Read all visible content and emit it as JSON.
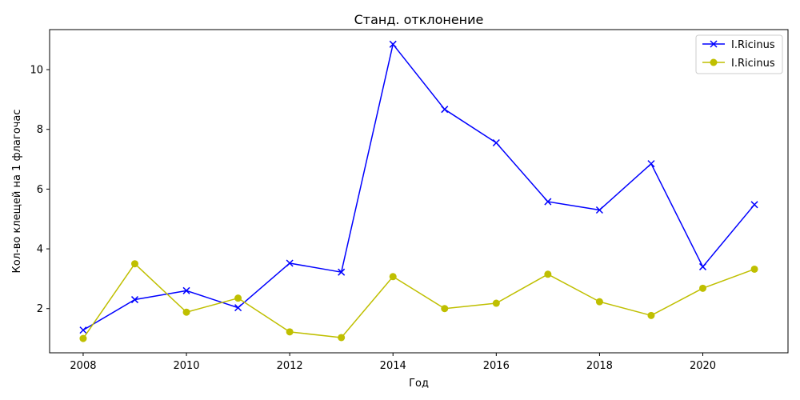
{
  "chart_data": {
    "type": "line",
    "title": "Станд. отклонение",
    "xlabel": "Год",
    "ylabel": "Кол-во клещей на 1 флагочас",
    "xlim": [
      2007.35,
      2021.65
    ],
    "ylim": [
      0.52,
      11.34
    ],
    "xticks": [
      2008,
      2010,
      2012,
      2014,
      2016,
      2018,
      2020
    ],
    "yticks": [
      2,
      4,
      6,
      8,
      10
    ],
    "grid": false,
    "legend_position": "top-right",
    "x": [
      2008,
      2009,
      2010,
      2011,
      2012,
      2013,
      2014,
      2015,
      2016,
      2017,
      2018,
      2019,
      2020,
      2021
    ],
    "series": [
      {
        "name": "I.Ricinus",
        "color": "#0000ff",
        "marker": "x",
        "values": [
          1.28,
          2.3,
          2.6,
          2.03,
          3.52,
          3.22,
          10.85,
          8.67,
          7.55,
          5.58,
          5.3,
          6.85,
          3.4,
          5.48
        ]
      },
      {
        "name": "I.Ricinus",
        "color": "#bfbf00",
        "marker": "o",
        "values": [
          1.0,
          3.5,
          1.88,
          2.35,
          1.22,
          1.03,
          3.07,
          2.0,
          2.18,
          3.15,
          2.23,
          1.77,
          2.68,
          3.32
        ]
      }
    ]
  }
}
